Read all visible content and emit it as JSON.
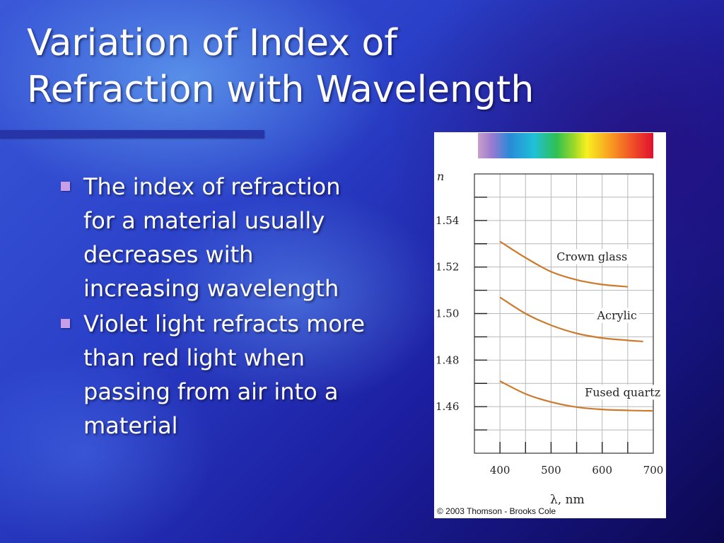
{
  "slide": {
    "title_line1": "Variation of Index of",
    "title_line2": "Refraction with Wavelength",
    "bullets": [
      {
        "lines": [
          "The index of refraction",
          "for a material usually",
          "decreases with",
          "increasing wavelength"
        ]
      },
      {
        "lines": [
          "Violet light refracts more",
          "than red light when",
          "passing from air into a",
          "material"
        ]
      }
    ],
    "colors": {
      "background": "#2a40c8",
      "bullet_marker": "#c89ee8",
      "title_rule": "#2734a8",
      "curve": "#cc7a2c"
    }
  },
  "chart_data": {
    "type": "line",
    "ylabel": "n",
    "xlabel": "λ, nm",
    "xlim": [
      350,
      700
    ],
    "ylim": [
      1.44,
      1.56
    ],
    "x_ticks": [
      400,
      500,
      600,
      700
    ],
    "y_ticks": [
      1.46,
      1.48,
      1.5,
      1.52,
      1.54
    ],
    "y_tick_labels": [
      "1.46",
      "1.48",
      "1.50",
      "1.52",
      "1.54"
    ],
    "grid": true,
    "spectrum_bar": true,
    "series": [
      {
        "name": "Crown glass",
        "x": [
          400,
          450,
          500,
          550,
          600,
          650
        ],
        "y": [
          1.531,
          1.524,
          1.518,
          1.5145,
          1.5125,
          1.5115
        ]
      },
      {
        "name": "Acrylic",
        "x": [
          400,
          450,
          500,
          550,
          600,
          650,
          680
        ],
        "y": [
          1.507,
          1.5,
          1.495,
          1.4915,
          1.4895,
          1.4885,
          1.488
        ]
      },
      {
        "name": "Fused quartz",
        "x": [
          400,
          450,
          500,
          550,
          600,
          650,
          700
        ],
        "y": [
          1.471,
          1.4655,
          1.462,
          1.4598,
          1.4588,
          1.4584,
          1.4582
        ]
      }
    ],
    "credit": "© 2003 Thomson - Brooks Cole"
  }
}
